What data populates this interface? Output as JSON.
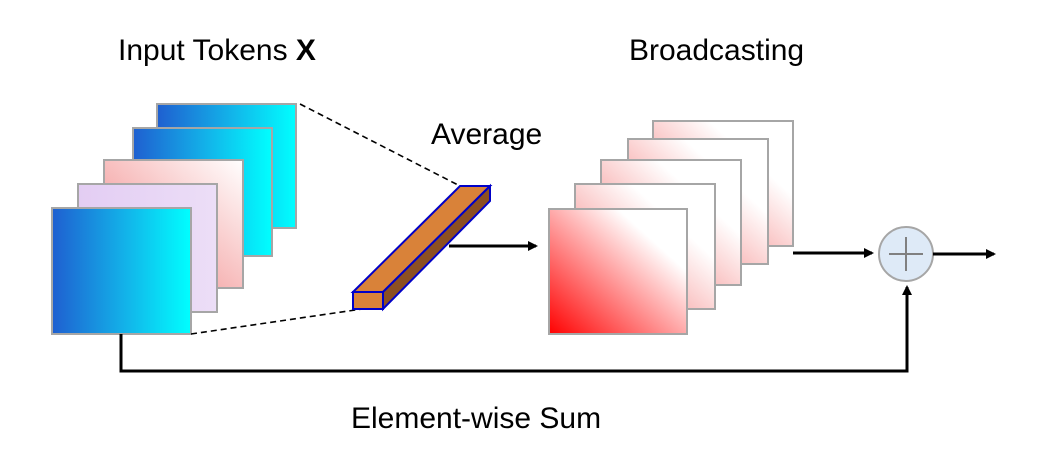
{
  "labels": {
    "input_tokens": "Input Tokens",
    "input_symbol": "X",
    "broadcasting": "Broadcasting",
    "average": "Average",
    "element_wise_sum": "Element-wise Sum"
  },
  "colors": {
    "input_blue": "#1f5fd0",
    "input_cyan": "#00ffff",
    "input_pink": "#f7b4b4",
    "input_lavender": "#e6d3f5",
    "broadcast_red": "#ff0000",
    "bar_fill": "#d98239",
    "bar_edge": "#0000c8",
    "sum_node_fill": "#deeaf7",
    "frame_gray": "#a6a6a6"
  },
  "icons": {
    "sum_node": "circled-plus-icon"
  }
}
